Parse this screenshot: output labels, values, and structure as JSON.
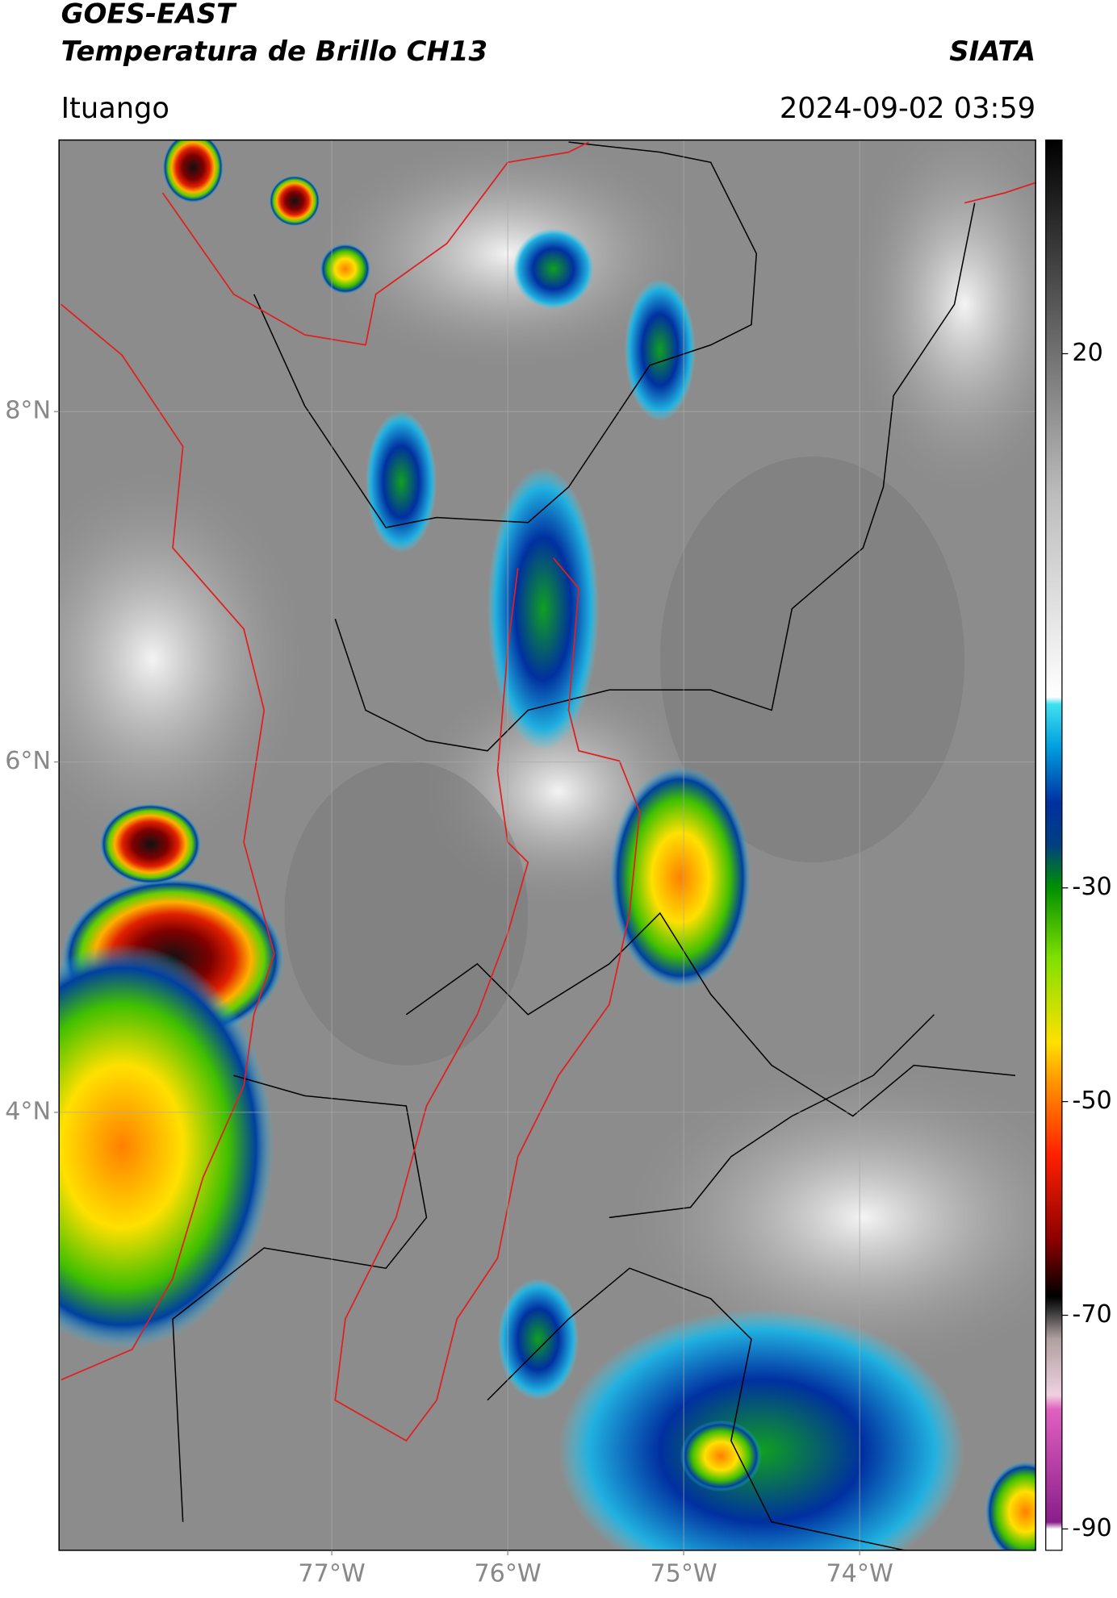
{
  "header": {
    "title": "GOES-EAST",
    "subtitle": "Temperatura de Brillo CH13",
    "brand": "SIATA",
    "location": "Ituango",
    "datetime": "2024-09-02 03:59"
  },
  "map": {
    "latlim": [
      1.5,
      9.55
    ],
    "lonlim": [
      -78.55,
      -73.0
    ],
    "latticks": [
      {
        "value": 8,
        "label": "8°N"
      },
      {
        "value": 6,
        "label": "6°N"
      },
      {
        "value": 4,
        "label": "4°N"
      }
    ],
    "lonticks": [
      {
        "value": -77,
        "label": "77°W"
      },
      {
        "value": -76,
        "label": "76°W"
      },
      {
        "value": -75,
        "label": "75°W"
      },
      {
        "value": -74,
        "label": "74°W"
      }
    ],
    "grid": true
  },
  "colorbar": {
    "lim": [
      -92,
      40
    ],
    "ticks": [
      20,
      -30,
      -50,
      -70,
      -90
    ]
  }
}
